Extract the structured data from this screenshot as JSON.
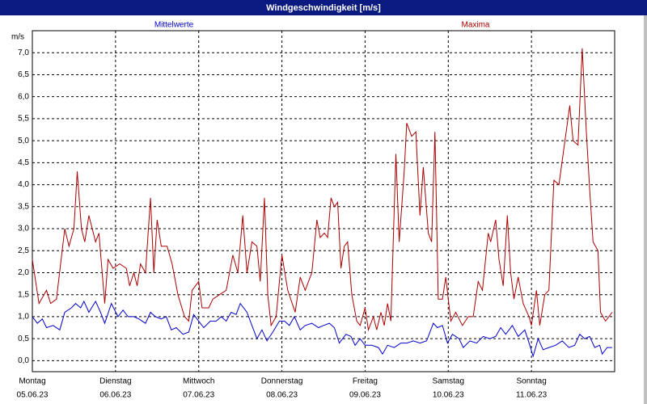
{
  "chart_data": {
    "type": "line",
    "title": "Windgeschwindigkeit [m/s]",
    "y_unit": "m/s",
    "xlim": [
      0,
      7
    ],
    "ylim": [
      -0.25,
      7.5
    ],
    "grid": true,
    "xticks": [
      {
        "value": 0,
        "label": "Montag",
        "date": "05.06.23"
      },
      {
        "value": 1,
        "label": "Dienstag",
        "date": "06.06.23"
      },
      {
        "value": 2,
        "label": "Mittwoch",
        "date": "07.06.23"
      },
      {
        "value": 3,
        "label": "Donnerstag",
        "date": "08.06.23"
      },
      {
        "value": 4,
        "label": "Freitag",
        "date": "09.06.23"
      },
      {
        "value": 5,
        "label": "Samstag",
        "date": "10.06.23"
      },
      {
        "value": 6,
        "label": "Sonntag",
        "date": "11.06.23"
      }
    ],
    "yticks": [
      {
        "value": 0,
        "label": "0,0"
      },
      {
        "value": 0.5,
        "label": "0,5"
      },
      {
        "value": 1,
        "label": "1,0"
      },
      {
        "value": 1.5,
        "label": "1,5"
      },
      {
        "value": 2,
        "label": "2,0"
      },
      {
        "value": 2.5,
        "label": "2,5"
      },
      {
        "value": 3,
        "label": "3,0"
      },
      {
        "value": 3.5,
        "label": "3,5"
      },
      {
        "value": 4,
        "label": "4,0"
      },
      {
        "value": 4.5,
        "label": "4,5"
      },
      {
        "value": 5,
        "label": "5,0"
      },
      {
        "value": 5.5,
        "label": "5,5"
      },
      {
        "value": 6,
        "label": "6,0"
      },
      {
        "value": 6.5,
        "label": "6,5"
      },
      {
        "value": 7,
        "label": "7,0"
      }
    ],
    "series": [
      {
        "name": "Mittelwerte",
        "color": "#0000cc",
        "x": [
          0.0,
          0.06,
          0.12,
          0.17,
          0.25,
          0.33,
          0.39,
          0.47,
          0.52,
          0.58,
          0.62,
          0.68,
          0.76,
          0.82,
          0.87,
          0.95,
          1.03,
          1.09,
          1.15,
          1.22,
          1.28,
          1.36,
          1.42,
          1.48,
          1.55,
          1.61,
          1.67,
          1.73,
          1.81,
          1.88,
          1.94,
          2.0,
          2.06,
          2.14,
          2.21,
          2.27,
          2.33,
          2.39,
          2.45,
          2.5,
          2.58,
          2.64,
          2.7,
          2.76,
          2.82,
          2.89,
          2.97,
          3.03,
          3.09,
          3.15,
          3.22,
          3.28,
          3.36,
          3.44,
          3.5,
          3.57,
          3.63,
          3.69,
          3.77,
          3.83,
          3.88,
          3.94,
          4.0,
          4.08,
          4.16,
          4.21,
          4.27,
          4.35,
          4.43,
          4.5,
          4.58,
          4.66,
          4.74,
          4.82,
          4.87,
          4.93,
          4.99,
          5.05,
          5.13,
          5.18,
          5.26,
          5.34,
          5.42,
          5.5,
          5.57,
          5.63,
          5.69,
          5.77,
          5.84,
          5.92,
          5.98,
          6.02,
          6.08,
          6.14,
          6.21,
          6.29,
          6.37,
          6.45,
          6.52,
          6.58,
          6.64,
          6.7,
          6.76,
          6.82,
          6.85,
          6.91,
          6.97
        ],
        "values": [
          1.0,
          0.85,
          0.95,
          0.75,
          0.8,
          0.7,
          1.1,
          1.2,
          1.3,
          1.2,
          1.35,
          1.1,
          1.35,
          1.1,
          0.85,
          1.3,
          1.0,
          1.15,
          1.0,
          1.0,
          0.95,
          0.85,
          1.1,
          1.0,
          0.95,
          1.0,
          0.7,
          0.75,
          0.6,
          0.65,
          1.05,
          0.9,
          0.75,
          0.9,
          0.9,
          1.0,
          0.9,
          1.1,
          1.05,
          1.3,
          1.1,
          0.8,
          0.5,
          0.7,
          0.45,
          0.65,
          0.9,
          0.9,
          0.8,
          1.0,
          0.7,
          0.8,
          0.85,
          0.75,
          0.8,
          0.85,
          0.75,
          0.4,
          0.6,
          0.55,
          0.35,
          0.5,
          0.35,
          0.35,
          0.3,
          0.15,
          0.35,
          0.3,
          0.4,
          0.4,
          0.45,
          0.4,
          0.45,
          0.85,
          0.75,
          0.8,
          0.4,
          0.6,
          0.5,
          0.3,
          0.45,
          0.4,
          0.55,
          0.5,
          0.55,
          0.75,
          0.6,
          0.8,
          0.55,
          0.7,
          0.35,
          0.1,
          0.5,
          0.25,
          0.3,
          0.35,
          0.45,
          0.3,
          0.35,
          0.6,
          0.5,
          0.55,
          0.3,
          0.35,
          0.15,
          0.3,
          0.3
        ]
      },
      {
        "name": "Maxima",
        "color": "#aa0000",
        "x": [
          0.0,
          0.08,
          0.17,
          0.22,
          0.29,
          0.39,
          0.44,
          0.5,
          0.54,
          0.59,
          0.63,
          0.68,
          0.76,
          0.8,
          0.87,
          0.91,
          0.97,
          1.05,
          1.13,
          1.17,
          1.22,
          1.26,
          1.3,
          1.36,
          1.42,
          1.46,
          1.5,
          1.55,
          1.62,
          1.68,
          1.75,
          1.83,
          1.88,
          1.92,
          2.0,
          2.04,
          2.12,
          2.17,
          2.25,
          2.33,
          2.41,
          2.47,
          2.53,
          2.58,
          2.64,
          2.7,
          2.74,
          2.79,
          2.83,
          2.87,
          2.93,
          3.0,
          3.07,
          3.16,
          3.22,
          3.28,
          3.36,
          3.42,
          3.46,
          3.51,
          3.55,
          3.59,
          3.63,
          3.67,
          3.71,
          3.75,
          3.79,
          3.84,
          3.9,
          3.94,
          4.0,
          4.04,
          4.1,
          4.14,
          4.19,
          4.23,
          4.27,
          4.31,
          4.37,
          4.41,
          4.47,
          4.5,
          4.56,
          4.61,
          4.66,
          4.7,
          4.76,
          4.8,
          4.84,
          4.88,
          4.93,
          4.97,
          5.03,
          5.09,
          5.17,
          5.24,
          5.3,
          5.36,
          5.41,
          5.48,
          5.51,
          5.57,
          5.61,
          5.66,
          5.71,
          5.75,
          5.79,
          5.84,
          5.9,
          5.97,
          6.0,
          6.06,
          6.1,
          6.16,
          6.21,
          6.27,
          6.33,
          6.41,
          6.46,
          6.5,
          6.56,
          6.61,
          6.66,
          6.7,
          6.74,
          6.8,
          6.83,
          6.89,
          6.97
        ],
        "values": [
          2.3,
          1.3,
          1.6,
          1.3,
          1.4,
          3.0,
          2.6,
          3.0,
          4.3,
          3.0,
          2.7,
          3.3,
          2.7,
          2.9,
          1.3,
          2.3,
          2.1,
          2.2,
          2.1,
          1.7,
          2.0,
          1.7,
          2.2,
          2.0,
          3.7,
          2.0,
          3.2,
          2.6,
          2.6,
          2.2,
          1.5,
          1.0,
          0.9,
          1.6,
          1.8,
          1.2,
          1.2,
          1.4,
          1.5,
          1.6,
          2.4,
          2.0,
          3.3,
          2.0,
          2.7,
          2.6,
          1.8,
          3.7,
          1.5,
          0.8,
          1.0,
          2.4,
          1.6,
          1.1,
          1.9,
          1.6,
          2.0,
          3.2,
          2.8,
          2.9,
          2.8,
          3.7,
          3.5,
          3.6,
          2.1,
          2.6,
          2.7,
          1.5,
          0.9,
          0.8,
          1.2,
          0.7,
          1.0,
          0.7,
          1.1,
          0.8,
          1.3,
          0.9,
          4.7,
          2.7,
          4.3,
          5.4,
          5.1,
          5.2,
          3.3,
          4.4,
          2.9,
          2.7,
          5.2,
          1.4,
          1.4,
          1.9,
          0.9,
          1.1,
          0.8,
          1.0,
          1.0,
          1.8,
          1.6,
          2.9,
          2.7,
          3.2,
          2.3,
          1.7,
          3.3,
          2.0,
          1.4,
          1.9,
          1.3,
          1.0,
          0.8,
          1.6,
          0.8,
          1.5,
          1.6,
          4.1,
          4.0,
          5.1,
          5.8,
          5.0,
          4.9,
          7.1,
          5.2,
          3.9,
          2.7,
          2.5,
          1.1,
          0.9,
          1.1
        ]
      }
    ]
  }
}
